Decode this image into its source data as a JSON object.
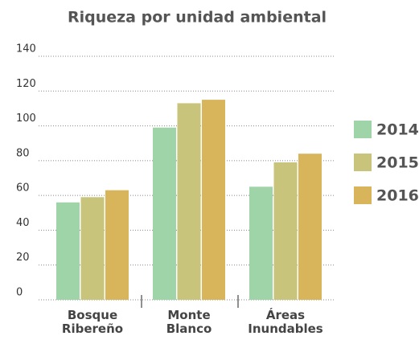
{
  "chart_data": {
    "type": "bar",
    "title": "Riqueza por unidad ambiental",
    "categories": [
      "Bosque Ribereño",
      "Monte Blanco",
      "Áreas Inundables"
    ],
    "series": [
      {
        "name": "2014",
        "color": "#9fd3a8",
        "values": [
          56,
          99,
          65
        ]
      },
      {
        "name": "2015",
        "color": "#c8c47c",
        "values": [
          59,
          113,
          79
        ]
      },
      {
        "name": "2016",
        "color": "#d8b55b",
        "values": [
          63,
          115,
          84
        ]
      }
    ],
    "ylim": [
      0,
      140
    ],
    "yticks": [
      0,
      20,
      40,
      60,
      80,
      100,
      120,
      140
    ],
    "grid": true,
    "legend": "right"
  }
}
